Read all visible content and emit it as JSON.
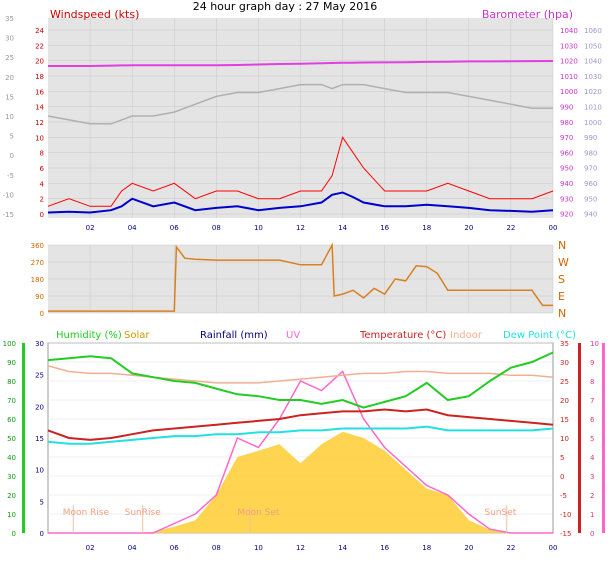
{
  "title": "24 hour graph day : 27 May 2016",
  "colors": {
    "wind": "#ff0000",
    "gust": "#ff0000",
    "avgwind": "#0000cc",
    "baro": "#e040e0",
    "barogray": "#b0b0b0",
    "dir": "#d98020",
    "humidity": "#22cc22",
    "solar": "#ffcc33",
    "rain": "#000080",
    "uv": "#ff66cc",
    "temp": "#cc2222",
    "indoor": "#f0b090",
    "dew": "#22e0e0",
    "plotbg": "#e4e4e4",
    "grid": "#c8c8c8"
  },
  "x_ticks": [
    "02",
    "04",
    "06",
    "08",
    "10",
    "12",
    "14",
    "16",
    "18",
    "20",
    "22",
    "00"
  ],
  "chart_data": [
    {
      "type": "line",
      "name": "wind-baro-panel",
      "left_label": "Windspeed (kts)",
      "right_label": "Barometer (hpa)",
      "left_ticks": [
        "24",
        "22",
        "20",
        "18",
        "16",
        "14",
        "12",
        "10",
        "8",
        "6",
        "4",
        "2",
        "0"
      ],
      "left_ticks_gray": [
        "35",
        "30",
        "25",
        "20",
        "15",
        "10",
        "5",
        "0",
        "-5",
        "-10",
        "-15"
      ],
      "right_ticks": [
        "1040",
        "1030",
        "1020",
        "1010",
        "1000",
        "990",
        "980",
        "970",
        "960",
        "950",
        "940",
        "930",
        "920"
      ],
      "right_ticks_outer": [
        "1060",
        "1050",
        "1040",
        "1030",
        "1020",
        "1010",
        "1000",
        "990",
        "980",
        "970",
        "960",
        "950",
        "940"
      ],
      "x": [
        0,
        1,
        2,
        3,
        3.5,
        4,
        5,
        6,
        7,
        8,
        9,
        10,
        11,
        12,
        13,
        13.5,
        14,
        14.5,
        15,
        16,
        17,
        18,
        19,
        20,
        21,
        22,
        23,
        24
      ],
      "windspeed_gust": [
        1,
        2,
        1,
        1,
        3,
        4,
        3,
        4,
        2,
        3,
        3,
        2,
        2,
        3,
        3,
        5,
        10,
        8,
        6,
        3,
        3,
        3,
        4,
        3,
        2,
        2,
        2,
        3
      ],
      "windspeed_avg": [
        0.2,
        0.3,
        0.2,
        0.5,
        1,
        2,
        1,
        1.5,
        0.5,
        0.8,
        1,
        0.5,
        0.8,
        1,
        1.5,
        2.5,
        2.8,
        2.2,
        1.5,
        1,
        1,
        1.2,
        1,
        0.8,
        0.5,
        0.4,
        0.3,
        0.5
      ],
      "barometer": [
        1016.5,
        1016.5,
        1016.5,
        1016.8,
        1016.9,
        1017,
        1017,
        1017,
        1017,
        1017,
        1017.2,
        1017.5,
        1017.8,
        1018,
        1018.3,
        1018.5,
        1018.6,
        1018.7,
        1018.8,
        1018.9,
        1019,
        1019.2,
        1019.3,
        1019.5,
        1019.5,
        1019.6,
        1019.7,
        1019.8
      ],
      "gray_series": [
        10,
        9,
        8,
        8,
        9,
        10,
        10,
        11,
        13,
        15,
        16,
        16,
        17,
        18,
        18,
        17,
        18,
        18,
        18,
        17,
        16,
        16,
        16,
        15,
        14,
        13,
        12,
        12
      ]
    },
    {
      "type": "line",
      "name": "wind-direction-panel",
      "left_ticks": [
        "360",
        "270",
        "180",
        "90",
        "0"
      ],
      "right_ticks": [
        "N",
        "W",
        "S",
        "E",
        "N"
      ],
      "x": [
        0,
        1,
        2,
        3,
        4,
        5,
        6,
        6.1,
        6.5,
        7,
        8,
        9,
        10,
        11,
        12,
        13,
        13.5,
        13.6,
        14,
        14.5,
        15,
        15.5,
        16,
        16.5,
        17,
        17.5,
        18,
        18.5,
        19,
        20,
        21,
        22,
        23,
        23.5,
        24
      ],
      "direction": [
        10,
        10,
        10,
        10,
        10,
        10,
        10,
        350,
        290,
        285,
        280,
        280,
        280,
        280,
        255,
        255,
        360,
        90,
        100,
        120,
        80,
        130,
        100,
        180,
        170,
        250,
        245,
        210,
        120,
        120,
        120,
        120,
        120,
        40,
        40
      ]
    },
    {
      "type": "area",
      "name": "climate-panel",
      "labels": [
        "Humidity (%)",
        "Solar",
        "Rainfall (mm)",
        "UV",
        "Temperature (°C)",
        "Indoor",
        "Dew Point (°C)"
      ],
      "humidity_ticks": [
        "100",
        "90",
        "80",
        "70",
        "60",
        "50",
        "40",
        "30",
        "20",
        "10",
        "0"
      ],
      "solar_ticks": [
        "30",
        "25",
        "20",
        "15",
        "10",
        "5",
        "0"
      ],
      "temp_ticks": [
        "35",
        "30",
        "25",
        "20",
        "15",
        "10",
        "5",
        "0",
        "-5",
        "-10",
        "-15"
      ],
      "uv_ticks": [
        "10",
        "9",
        "8",
        "7",
        "6",
        "5",
        "4",
        "3",
        "2",
        "1",
        "0"
      ],
      "markers": [
        "Moon Rise",
        "SunRise",
        "Moon Set",
        "SunSet"
      ],
      "x": [
        0,
        1,
        2,
        3,
        4,
        5,
        6,
        7,
        8,
        9,
        10,
        11,
        12,
        13,
        14,
        15,
        16,
        17,
        18,
        19,
        20,
        21,
        22,
        23,
        24
      ],
      "humidity": [
        91,
        92,
        93,
        92,
        84,
        82,
        80,
        79,
        76,
        73,
        72,
        70,
        70,
        68,
        70,
        66,
        69,
        72,
        79,
        70,
        72,
        80,
        87,
        90,
        95
      ],
      "temperature": [
        12,
        10,
        9.5,
        10,
        11,
        12,
        12.5,
        13,
        13.5,
        14,
        14.5,
        15,
        16,
        16.5,
        17,
        17,
        17.5,
        17,
        17.5,
        16,
        15.5,
        15,
        14.5,
        14,
        13.5
      ],
      "dew_point": [
        9,
        8.5,
        8.5,
        9,
        9.5,
        10,
        10.5,
        10.5,
        11,
        11,
        11.5,
        11.5,
        12,
        12,
        12.5,
        12.5,
        12.5,
        12.5,
        13,
        12,
        12,
        12,
        12,
        12,
        12.5
      ],
      "indoor": [
        29,
        27.5,
        27,
        27,
        26.5,
        26,
        25.5,
        25,
        24.5,
        24.5,
        24.5,
        25,
        25.5,
        26,
        26.5,
        27,
        27,
        27.5,
        27.5,
        27,
        27,
        27,
        26.5,
        26.5,
        26
      ],
      "solar": [
        0,
        0,
        0,
        0,
        0,
        0.2,
        1,
        2,
        6,
        12,
        13,
        14,
        11,
        14,
        16,
        15,
        13,
        10,
        7,
        6,
        2,
        0.5,
        0,
        0,
        0
      ],
      "uv": [
        0,
        0,
        0,
        0,
        0,
        0,
        0.5,
        1,
        2,
        5,
        4.5,
        6,
        8,
        7.5,
        8.5,
        6,
        4.5,
        3.5,
        2.5,
        2,
        1,
        0.2,
        0,
        0,
        0
      ]
    }
  ]
}
